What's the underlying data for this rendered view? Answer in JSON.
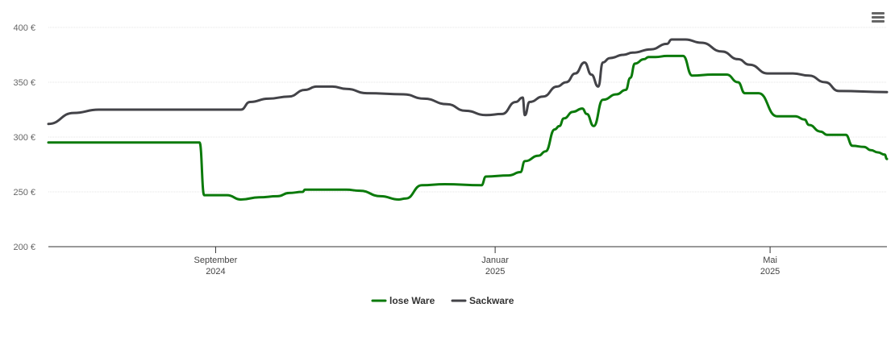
{
  "chart_data": {
    "type": "line",
    "title": "",
    "xlabel": "",
    "ylabel": "",
    "ylim": [
      200,
      400
    ],
    "y_ticks": [
      {
        "value": 200,
        "label": "200 €"
      },
      {
        "value": 250,
        "label": "250 €"
      },
      {
        "value": 300,
        "label": "300 €"
      },
      {
        "value": 350,
        "label": "350 €"
      },
      {
        "value": 400,
        "label": "400 €"
      }
    ],
    "xlim": [
      "2024-06-20",
      "2025-06-21"
    ],
    "x_ticks": [
      {
        "date": "2024-09-01",
        "line1": "September",
        "line2": "2024"
      },
      {
        "date": "2025-01-01",
        "line1": "Januar",
        "line2": "2025"
      },
      {
        "date": "2025-05-01",
        "line1": "Mai",
        "line2": "2025"
      }
    ],
    "grid": true,
    "legend_position": "bottom-center",
    "series": [
      {
        "name": "lose Ware",
        "color": "#0b7a0b",
        "points": [
          [
            "2024-06-20",
            295
          ],
          [
            "2024-08-25",
            295
          ],
          [
            "2024-08-27",
            247
          ],
          [
            "2024-09-06",
            247
          ],
          [
            "2024-09-12",
            243
          ],
          [
            "2024-09-20",
            245
          ],
          [
            "2024-09-28",
            246
          ],
          [
            "2024-10-03",
            249
          ],
          [
            "2024-10-09",
            250
          ],
          [
            "2024-10-10",
            252
          ],
          [
            "2024-10-28",
            252
          ],
          [
            "2024-11-03",
            251
          ],
          [
            "2024-11-12",
            246
          ],
          [
            "2024-11-20",
            243
          ],
          [
            "2024-11-23",
            244
          ],
          [
            "2024-11-30",
            256
          ],
          [
            "2024-12-10",
            257
          ],
          [
            "2024-12-26",
            256
          ],
          [
            "2024-12-28",
            264
          ],
          [
            "2025-01-07",
            265
          ],
          [
            "2025-01-12",
            268
          ],
          [
            "2025-01-14",
            278
          ],
          [
            "2025-01-20",
            283
          ],
          [
            "2025-01-23",
            287
          ],
          [
            "2025-01-27",
            307
          ],
          [
            "2025-01-29",
            310
          ],
          [
            "2025-01-31",
            317
          ],
          [
            "2025-02-04",
            323
          ],
          [
            "2025-02-08",
            326
          ],
          [
            "2025-02-10",
            321
          ],
          [
            "2025-02-13",
            310
          ],
          [
            "2025-02-17",
            334
          ],
          [
            "2025-02-23",
            339
          ],
          [
            "2025-02-27",
            343
          ],
          [
            "2025-03-01",
            354
          ],
          [
            "2025-03-03",
            367
          ],
          [
            "2025-03-07",
            371
          ],
          [
            "2025-03-09",
            373
          ],
          [
            "2025-03-12",
            373
          ],
          [
            "2025-03-17",
            374
          ],
          [
            "2025-03-24",
            374
          ],
          [
            "2025-03-28",
            356
          ],
          [
            "2025-04-06",
            357
          ],
          [
            "2025-04-12",
            357
          ],
          [
            "2025-04-17",
            350
          ],
          [
            "2025-04-20",
            340
          ],
          [
            "2025-04-26",
            340
          ],
          [
            "2025-05-04",
            319
          ],
          [
            "2025-05-12",
            319
          ],
          [
            "2025-05-16",
            316
          ],
          [
            "2025-05-18",
            311
          ],
          [
            "2025-05-23",
            305
          ],
          [
            "2025-05-26",
            302
          ],
          [
            "2025-06-03",
            302
          ],
          [
            "2025-06-06",
            292
          ],
          [
            "2025-06-11",
            291
          ],
          [
            "2025-06-14",
            288
          ],
          [
            "2025-06-17",
            286
          ],
          [
            "2025-06-20",
            284
          ],
          [
            "2025-06-21",
            280
          ]
        ]
      },
      {
        "name": "Sackware",
        "color": "#434348",
        "points": [
          [
            "2024-06-20",
            312
          ],
          [
            "2024-07-01",
            322
          ],
          [
            "2024-07-12",
            325
          ],
          [
            "2024-09-12",
            325
          ],
          [
            "2024-09-16",
            332
          ],
          [
            "2024-09-24",
            335
          ],
          [
            "2024-10-03",
            337
          ],
          [
            "2024-10-10",
            343
          ],
          [
            "2024-10-15",
            346
          ],
          [
            "2024-10-22",
            346
          ],
          [
            "2024-10-28",
            344
          ],
          [
            "2024-11-06",
            340
          ],
          [
            "2024-11-22",
            339
          ],
          [
            "2024-12-01",
            335
          ],
          [
            "2024-12-11",
            330
          ],
          [
            "2024-12-19",
            324
          ],
          [
            "2024-12-28",
            320
          ],
          [
            "2025-01-04",
            321
          ],
          [
            "2025-01-10",
            332
          ],
          [
            "2025-01-13",
            336
          ],
          [
            "2025-01-14",
            320
          ],
          [
            "2025-01-16",
            332
          ],
          [
            "2025-01-22",
            337
          ],
          [
            "2025-01-28",
            346
          ],
          [
            "2025-02-01",
            350
          ],
          [
            "2025-02-05",
            358
          ],
          [
            "2025-02-09",
            368
          ],
          [
            "2025-02-12",
            357
          ],
          [
            "2025-02-15",
            346
          ],
          [
            "2025-02-17",
            368
          ],
          [
            "2025-02-20",
            372
          ],
          [
            "2025-02-26",
            375
          ],
          [
            "2025-03-02",
            377
          ],
          [
            "2025-03-10",
            380
          ],
          [
            "2025-03-17",
            385
          ],
          [
            "2025-03-19",
            389
          ],
          [
            "2025-03-25",
            389
          ],
          [
            "2025-04-01",
            386
          ],
          [
            "2025-04-10",
            378
          ],
          [
            "2025-04-17",
            371
          ],
          [
            "2025-04-22",
            366
          ],
          [
            "2025-04-30",
            358
          ],
          [
            "2025-05-11",
            358
          ],
          [
            "2025-05-18",
            356
          ],
          [
            "2025-05-25",
            350
          ],
          [
            "2025-05-31",
            342
          ],
          [
            "2025-06-21",
            341
          ]
        ]
      }
    ]
  }
}
